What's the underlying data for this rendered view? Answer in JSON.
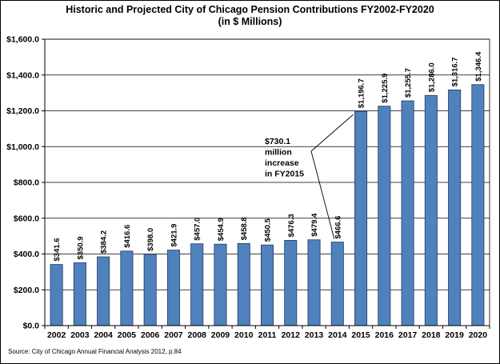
{
  "chart_data": {
    "type": "bar",
    "title": "Historic and Projected City of Chicago Pension Contributions FY2002-FY2020",
    "subtitle": "(in $ Millions)",
    "xlabel": "",
    "ylabel": "",
    "ylim": [
      0,
      1600
    ],
    "yticks": [
      "$0.0",
      "$200.0",
      "$400.0",
      "$600.0",
      "$800.0",
      "$1,000.0",
      "$1,200.0",
      "$1,400.0",
      "$1,600.0"
    ],
    "ytick_values": [
      0,
      200,
      400,
      600,
      800,
      1000,
      1200,
      1400,
      1600
    ],
    "grid": true,
    "categories": [
      "2002",
      "2003",
      "2004",
      "2005",
      "2006",
      "2007",
      "2008",
      "2009",
      "2010",
      "2011",
      "2012",
      "2013",
      "2014",
      "2015",
      "2016",
      "2017",
      "2018",
      "2019",
      "2020"
    ],
    "values": [
      341.6,
      350.9,
      384.2,
      416.6,
      398.0,
      421.9,
      457.0,
      454.9,
      458.8,
      450.5,
      476.3,
      479.4,
      466.6,
      1196.7,
      1225.9,
      1255.7,
      1286.0,
      1316.7,
      1346.4
    ],
    "data_labels": [
      "$341.6",
      "$350.9",
      "$384.2",
      "$416.6",
      "$398.0",
      "$421.9",
      "$457.0",
      "$454.9",
      "$458.8",
      "$450.5",
      "$476.3",
      "$479.4",
      "$466.6",
      "$1,196.7",
      "$1,225.9",
      "$1,255.7",
      "$1,286.0",
      "$1,316.7",
      "$1,346.4"
    ],
    "bar_color": "#4F81BD",
    "bar_edge_color": "#1F3A60",
    "annotation": {
      "lines": [
        "$730.1",
        "million",
        "increase",
        "in FY2015"
      ],
      "points_to": [
        "2014",
        "2015"
      ]
    },
    "source": "Source: City of Chicago Annual Financial Analysis 2012, p.84"
  }
}
